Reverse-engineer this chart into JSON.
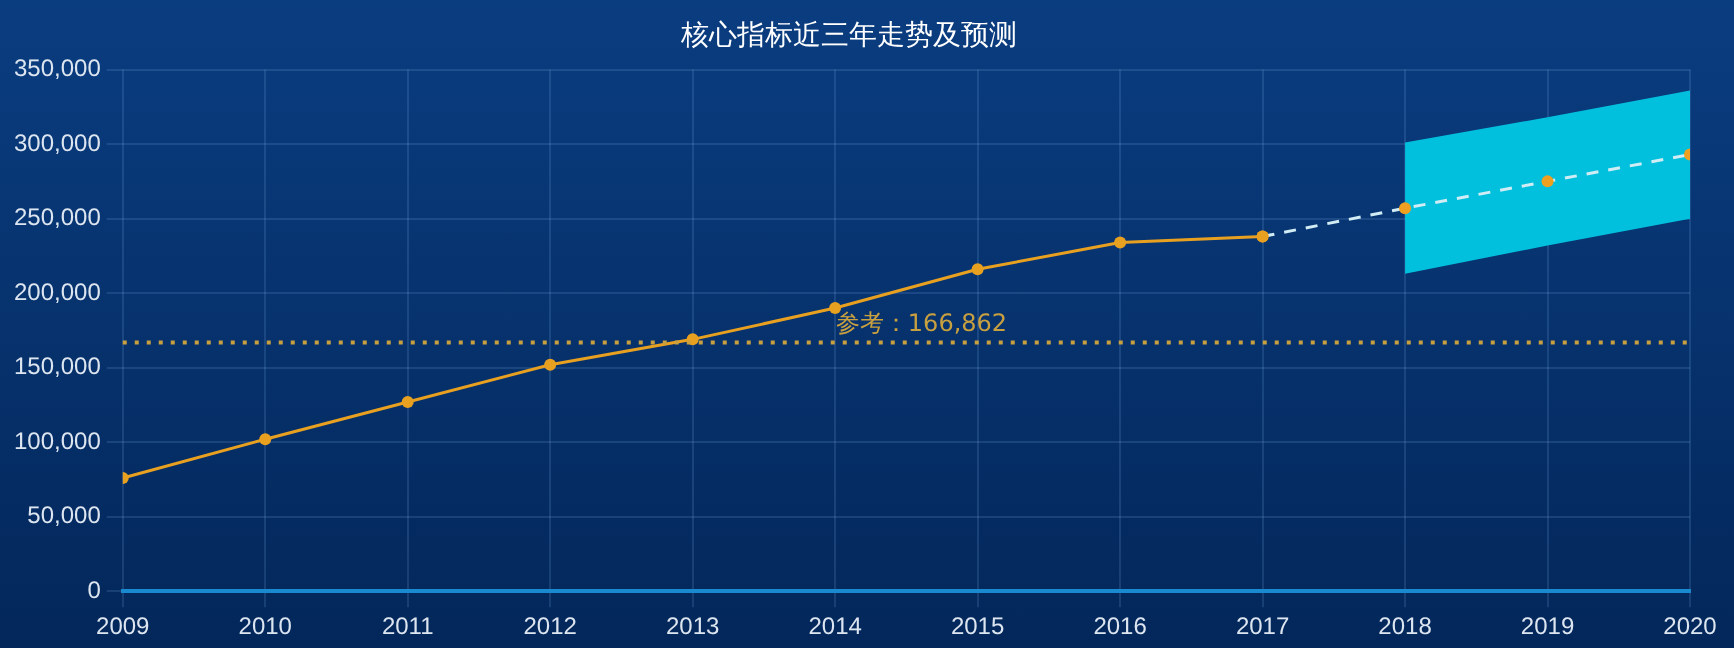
{
  "chart_data": {
    "type": "line",
    "title": "核心指标近三年走势及预测",
    "series": [
      {
        "color": "#e8a020",
        "x": [
          2009,
          2010,
          2011,
          2012,
          2013,
          2014,
          2015,
          2016,
          2017
        ],
        "values": [
          76000,
          102000,
          127000,
          152000,
          169000,
          190000,
          216000,
          234000,
          238000
        ],
        "line_style": "solid"
      },
      {
        "color": "#d0ecf4",
        "x": [
          2017,
          2018,
          2019,
          2020
        ],
        "values": [
          238000,
          257000,
          275000,
          293000
        ],
        "lower": [
          null,
          213000,
          232000,
          250000
        ],
        "upper": [
          null,
          301000,
          318000,
          336000
        ],
        "line_style": "dashed"
      }
    ],
    "xlim": [
      2009,
      2020
    ],
    "xticks": [
      2009,
      2010,
      2011,
      2012,
      2013,
      2014,
      2015,
      2016,
      2017,
      2018,
      2019,
      2020
    ],
    "ylim": [
      0,
      350000
    ],
    "yticks": [
      0,
      {
        "value": 50000,
        "label": "50,000"
      },
      {
        "value": 100000,
        "label": "100,000"
      },
      {
        "value": 150000,
        "label": "150,000"
      },
      {
        "value": 200000,
        "label": "200,000"
      },
      {
        "value": 250000,
        "label": "250,000"
      },
      {
        "value": 300000,
        "label": "300,000"
      },
      {
        "value": 350000,
        "label": "350,000"
      }
    ],
    "ref_lines": [
      {
        "axis": "y",
        "value": 166862,
        "label": "参考：166,862",
        "color": "#c8a040",
        "line_style": "dotted"
      }
    ],
    "grid": true,
    "legend": false,
    "marker": "circle"
  }
}
